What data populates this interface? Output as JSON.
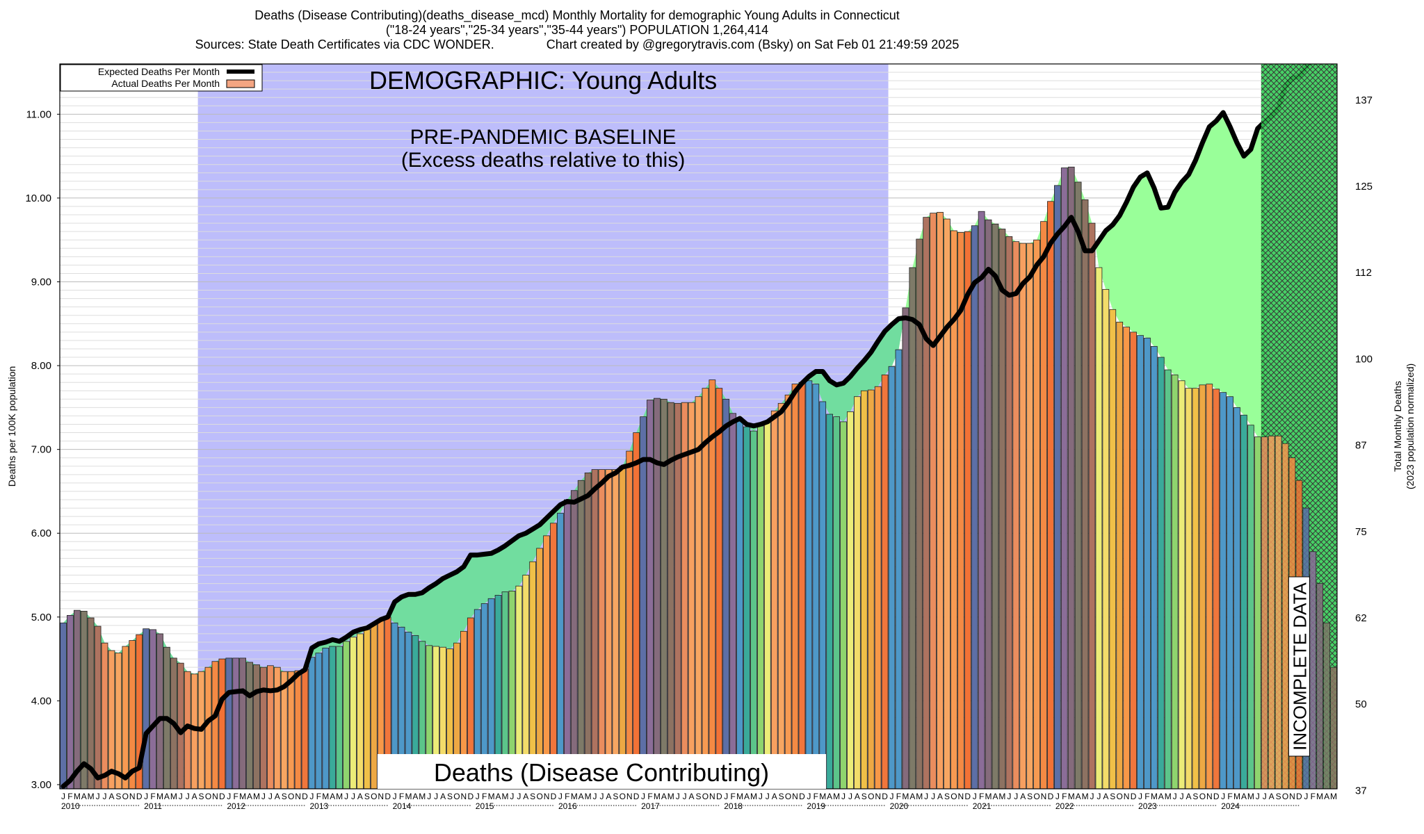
{
  "title": {
    "line1": "Deaths (Disease Contributing)(deaths_disease_mcd) Monthly Mortality for demographic Young Adults in Connecticut",
    "line2": "(\"18-24 years\",\"25-34 years\",\"35-44 years\") POPULATION 1,264,414",
    "line3_left": "Sources: State Death Certificates via CDC WONDER.",
    "line3_right": "Chart created by @gregorytravis.com (Bsky) on Sat Feb 01 21:49:59 2025"
  },
  "legend": {
    "expected": "Expected Deaths Per Month",
    "actual": "Actual Deaths Per Month"
  },
  "annotations": {
    "demographic": "DEMOGRAPHIC: Young Adults",
    "baseline_line1": "PRE-PANDEMIC BASELINE",
    "baseline_line2": "(Excess deaths relative to this)",
    "category_label": "Deaths (Disease Contributing)",
    "incomplete": "INCOMPLETE DATA"
  },
  "colors": {
    "baseline_region": "#bdbdfb",
    "excess_green": "#99ff99",
    "deficit_green": "#71dd9f",
    "incomplete_green": "#33cc55",
    "expected_line": "#000000",
    "legend_actual": "#f4a582",
    "month_colors": [
      "#4e98c8",
      "#4e98c8",
      "#4e98c8",
      "#3aaa9a",
      "#5cc58a",
      "#8fd46e",
      "#ecec78",
      "#f3dc6a",
      "#f0c048",
      "#eda844",
      "#f79848",
      "#f0763c"
    ],
    "above_colors": [
      "#5d6fa6",
      "#8b6d98",
      "#856b7c",
      "#7e7a68",
      "#8d7262",
      "#ae7360",
      "#ea8d5e",
      "#f7a060",
      "#f7a662",
      "#f79a52",
      "#f48a44",
      "#f27236"
    ]
  },
  "chart_data": {
    "type": "bar",
    "title": "Deaths (Disease Contributing)(deaths_disease_mcd) Monthly Mortality for demographic Young Adults in Connecticut",
    "ylabel": "Deaths per 100K population",
    "ylabel_right": [
      "Total Monthly Deaths",
      "(2023 population normalized)"
    ],
    "ylim": [
      2.95,
      11.6
    ],
    "yticks": [
      "3.00",
      "4.00",
      "5.00",
      "6.00",
      "7.00",
      "8.00",
      "9.00",
      "10.00",
      "11.00"
    ],
    "yticks_right": [
      {
        "label": "37",
        "value": 2.93
      },
      {
        "label": "50",
        "value": 3.96
      },
      {
        "label": "62",
        "value": 4.99
      },
      {
        "label": "75",
        "value": 6.02
      },
      {
        "label": "87",
        "value": 7.05
      },
      {
        "label": "100",
        "value": 8.08
      },
      {
        "label": "112",
        "value": 9.11
      },
      {
        "label": "125",
        "value": 10.14
      },
      {
        "label": "137",
        "value": 11.17
      }
    ],
    "month_letters": [
      "J",
      "F",
      "M",
      "A",
      "M",
      "J",
      "J",
      "A",
      "S",
      "O",
      "N",
      "D"
    ],
    "years": [
      "2010",
      "2011",
      "2012",
      "2013",
      "2014",
      "2015",
      "2016",
      "2017",
      "2018",
      "2019",
      "2020",
      "2021",
      "2022",
      "2023",
      "2024"
    ],
    "baseline_period": {
      "start_index": 20,
      "end_index": 119
    },
    "incomplete_start_index": 174,
    "legend_position": "top-left",
    "series": [
      {
        "name": "Actual Deaths Per Month",
        "values": [
          4.93,
          5.02,
          5.08,
          5.07,
          4.99,
          4.89,
          4.69,
          4.6,
          4.57,
          4.65,
          4.72,
          4.79,
          4.86,
          4.85,
          4.8,
          4.64,
          4.51,
          4.45,
          4.35,
          4.32,
          4.35,
          4.4,
          4.47,
          4.5,
          4.51,
          4.51,
          4.51,
          4.46,
          4.43,
          4.4,
          4.42,
          4.4,
          4.35,
          4.35,
          4.36,
          4.38,
          4.52,
          4.57,
          4.63,
          4.65,
          4.65,
          4.71,
          4.76,
          4.8,
          4.85,
          4.92,
          4.97,
          5.0,
          4.93,
          4.88,
          4.82,
          4.78,
          4.71,
          4.66,
          4.65,
          4.64,
          4.62,
          4.69,
          4.83,
          4.99,
          5.09,
          5.16,
          5.22,
          5.26,
          5.3,
          5.31,
          5.37,
          5.5,
          5.66,
          5.82,
          5.97,
          6.12,
          6.24,
          6.4,
          6.51,
          6.63,
          6.72,
          6.76,
          6.76,
          6.76,
          6.76,
          6.8,
          6.98,
          7.2,
          7.39,
          7.59,
          7.61,
          7.6,
          7.56,
          7.55,
          7.56,
          7.56,
          7.63,
          7.73,
          7.83,
          7.73,
          7.6,
          7.43,
          7.34,
          7.27,
          7.22,
          7.28,
          7.33,
          7.46,
          7.55,
          7.65,
          7.78,
          7.8,
          7.82,
          7.78,
          7.57,
          7.42,
          7.39,
          7.33,
          7.45,
          7.63,
          7.7,
          7.71,
          7.75,
          7.89,
          7.99,
          8.19,
          8.69,
          9.17,
          9.51,
          9.77,
          9.82,
          9.83,
          9.75,
          9.61,
          9.59,
          9.6,
          9.67,
          9.84,
          9.74,
          9.69,
          9.63,
          9.54,
          9.48,
          9.46,
          9.46,
          9.5,
          9.72,
          9.96,
          10.15,
          10.36,
          10.37,
          10.19,
          9.98,
          9.7,
          9.17,
          8.91,
          8.67,
          8.52,
          8.46,
          8.4,
          8.36,
          8.33,
          8.23,
          8.1,
          7.95,
          7.89,
          7.82,
          7.73,
          7.73,
          7.77,
          7.78,
          7.72,
          7.68,
          7.63,
          7.5,
          7.41,
          7.29,
          7.15,
          7.15,
          7.16,
          7.16,
          7.07,
          6.9,
          6.63,
          6.3,
          5.78,
          5.4,
          4.93,
          4.4
        ]
      },
      {
        "name": "Expected Deaths Per Month",
        "values": [
          2.98,
          3.05,
          3.16,
          3.25,
          3.19,
          3.08,
          3.11,
          3.16,
          3.13,
          3.08,
          3.16,
          3.2,
          3.61,
          3.7,
          3.79,
          3.79,
          3.73,
          3.62,
          3.7,
          3.67,
          3.66,
          3.76,
          3.82,
          4.02,
          4.1,
          4.11,
          4.12,
          4.06,
          4.11,
          4.13,
          4.12,
          4.13,
          4.17,
          4.24,
          4.32,
          4.37,
          4.63,
          4.68,
          4.7,
          4.73,
          4.71,
          4.76,
          4.82,
          4.85,
          4.87,
          4.92,
          4.97,
          5.0,
          5.18,
          5.24,
          5.27,
          5.27,
          5.29,
          5.35,
          5.4,
          5.46,
          5.5,
          5.54,
          5.6,
          5.74,
          5.74,
          5.75,
          5.76,
          5.8,
          5.85,
          5.91,
          5.97,
          6.0,
          6.05,
          6.1,
          6.18,
          6.26,
          6.34,
          6.38,
          6.37,
          6.41,
          6.45,
          6.53,
          6.6,
          6.68,
          6.72,
          6.79,
          6.81,
          6.84,
          6.88,
          6.88,
          6.84,
          6.82,
          6.87,
          6.91,
          6.94,
          6.97,
          7.0,
          7.08,
          7.15,
          7.21,
          7.28,
          7.33,
          7.37,
          7.3,
          7.28,
          7.3,
          7.33,
          7.39,
          7.45,
          7.56,
          7.69,
          7.79,
          7.87,
          7.93,
          7.93,
          7.82,
          7.77,
          7.79,
          7.87,
          7.97,
          8.06,
          8.16,
          8.29,
          8.41,
          8.49,
          8.56,
          8.57,
          8.55,
          8.49,
          8.32,
          8.24,
          8.35,
          8.46,
          8.55,
          8.66,
          8.85,
          8.99,
          9.05,
          9.15,
          9.07,
          8.9,
          8.84,
          8.86,
          8.98,
          9.06,
          9.2,
          9.3,
          9.46,
          9.57,
          9.66,
          9.77,
          9.6,
          9.37,
          9.37,
          9.49,
          9.61,
          9.68,
          9.79,
          9.95,
          10.13,
          10.25,
          10.3,
          10.12,
          9.88,
          9.89,
          10.07,
          10.19,
          10.28,
          10.45,
          10.66,
          10.85,
          10.92,
          11.02,
          10.85,
          10.66,
          10.5,
          10.58,
          10.83,
          10.91,
          10.98,
          11.08,
          11.33,
          11.43,
          11.45,
          11.56,
          11.66,
          11.77,
          11.88
        ]
      }
    ]
  }
}
